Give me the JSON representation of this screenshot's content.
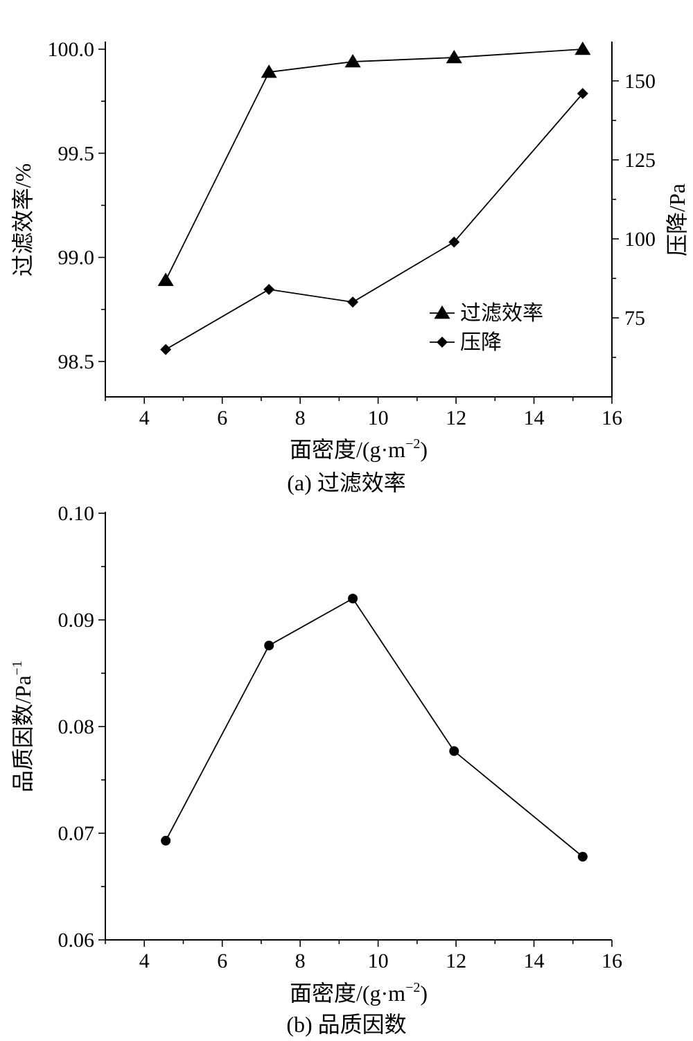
{
  "chart_data": [
    {
      "type": "line",
      "caption": "(a) 过滤效率",
      "xlabel": "面密度/(g·m",
      "xlabel_sup": "−2",
      "xlabel_tail": ")",
      "xlim": [
        3,
        16
      ],
      "x_ticks": [
        4,
        6,
        8,
        10,
        12,
        14,
        16
      ],
      "ylabel": "过滤效率/%",
      "ylim": [
        98.33,
        100.03
      ],
      "y_ticks": [
        "98.5",
        "99.0",
        "99.5",
        "100.0"
      ],
      "y2label": "压降/Pa",
      "y2lim": [
        50,
        162
      ],
      "y2_ticks": [
        "75",
        "100",
        "125",
        "150"
      ],
      "legend_position": "center-right",
      "series": [
        {
          "name": "过滤效率",
          "axis": "left",
          "marker": "triangle",
          "x": [
            4.55,
            7.2,
            9.35,
            11.95,
            15.25
          ],
          "y": [
            98.89,
            99.89,
            99.94,
            99.96,
            100.0
          ]
        },
        {
          "name": "压降",
          "axis": "right",
          "marker": "diamond",
          "x": [
            4.55,
            7.2,
            9.35,
            11.95,
            15.25
          ],
          "y": [
            65,
            84,
            80,
            99,
            146
          ]
        }
      ]
    },
    {
      "type": "line",
      "caption": "(b) 品质因数",
      "xlabel": "面密度/(g·m",
      "xlabel_sup": "−2",
      "xlabel_tail": ")",
      "xlim": [
        3,
        16
      ],
      "x_ticks": [
        4,
        6,
        8,
        10,
        12,
        14,
        16
      ],
      "ylabel": "品质因数/Pa",
      "ylabel_sup": "−1",
      "ylim": [
        0.06,
        0.1
      ],
      "y_ticks": [
        "0.06",
        "0.07",
        "0.08",
        "0.09",
        "0.10"
      ],
      "series": [
        {
          "marker": "circle",
          "x": [
            4.55,
            7.2,
            9.35,
            11.95,
            15.25
          ],
          "y": [
            0.0693,
            0.0876,
            0.092,
            0.0777,
            0.0678
          ]
        }
      ]
    }
  ]
}
